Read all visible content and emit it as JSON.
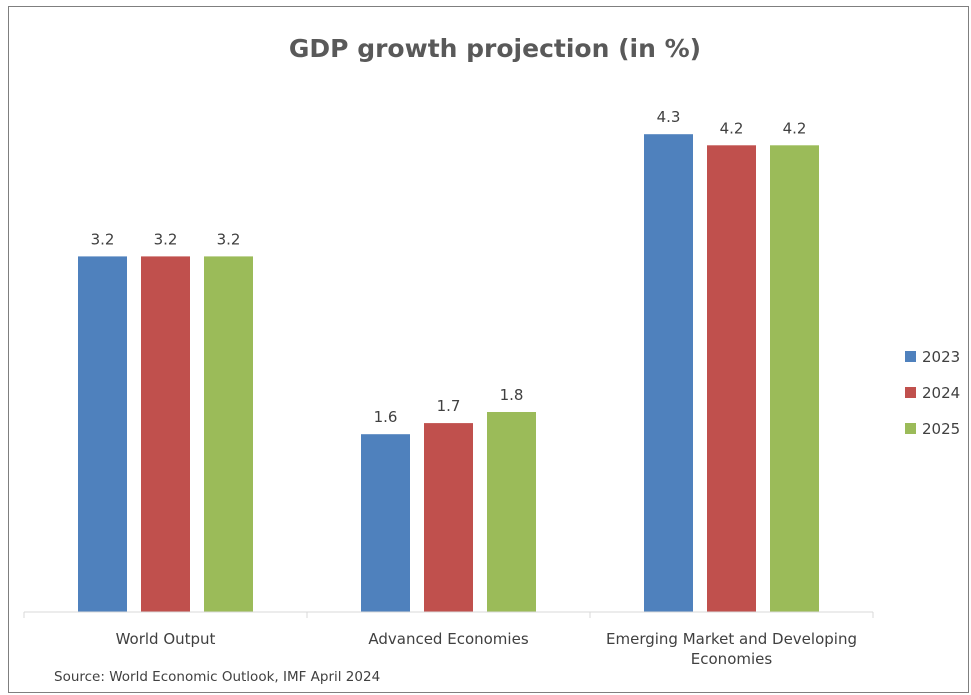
{
  "chart_data": {
    "type": "bar",
    "title": "GDP growth projection (in %)",
    "categories": [
      [
        "World Output"
      ],
      [
        "Advanced Economies"
      ],
      [
        "Emerging Market and Developing",
        "Economies"
      ]
    ],
    "series": [
      {
        "name": "2023",
        "color": "#4F81BD",
        "values": [
          3.2,
          1.6,
          4.3
        ]
      },
      {
        "name": "2024",
        "color": "#C0504D",
        "values": [
          3.2,
          1.7,
          4.2
        ]
      },
      {
        "name": "2025",
        "color": "#9BBB59",
        "values": [
          3.2,
          1.8,
          4.2
        ]
      }
    ],
    "ylim": [
      0,
      4.5
    ],
    "grid": false,
    "data_labels": true,
    "legend_position": "right",
    "source": "Source: World Economic Outlook, IMF April 2024"
  }
}
